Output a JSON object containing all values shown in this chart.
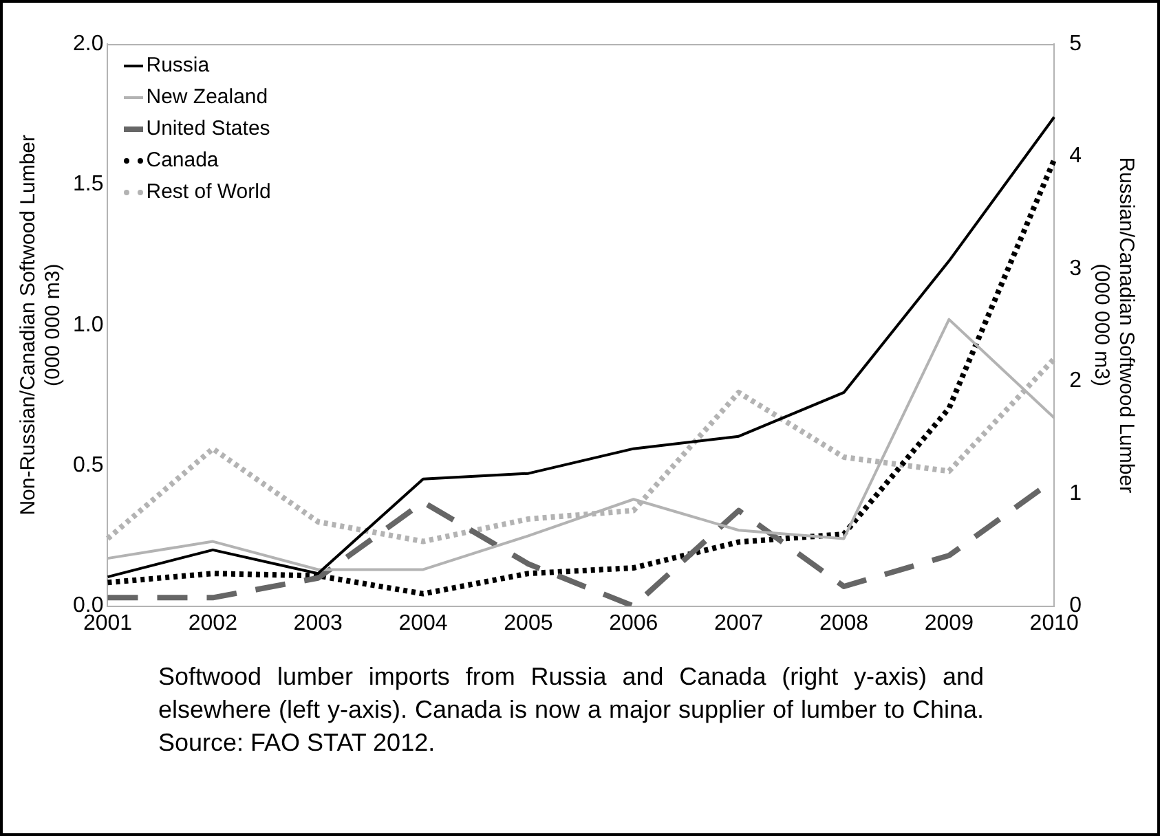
{
  "chart_data": {
    "type": "line",
    "categories": [
      "2001",
      "2002",
      "2003",
      "2004",
      "2005",
      "2006",
      "2007",
      "2008",
      "2009",
      "2010"
    ],
    "ylabel": "Non-Russian/Canadian Softwood Lumber\n(000 000 m3)",
    "y2label": "Russian/Canadian Softwood Lumber\n(000 000 m3)",
    "ylim": [
      0,
      2
    ],
    "yticks": [
      {
        "value": 0,
        "label": "0.0"
      },
      {
        "value": 0.5,
        "label": "0.5"
      },
      {
        "value": 1,
        "label": "1.0"
      },
      {
        "value": 1.5,
        "label": "1.5"
      },
      {
        "value": 2,
        "label": "2.0"
      }
    ],
    "y2lim": [
      0,
      5
    ],
    "y2ticks": [
      0,
      1,
      2,
      3,
      4,
      5
    ],
    "series": [
      {
        "name": "Russia",
        "color": "#000000",
        "axis": "y2",
        "line_style": "solid",
        "values": [
          0.26,
          0.5,
          0.29,
          1.13,
          1.18,
          1.4,
          1.51,
          1.9,
          3.07,
          4.35
        ]
      },
      {
        "name": "New Zealand",
        "color": "#b3b3b3",
        "line_style": "solid",
        "values": [
          0.17,
          0.23,
          0.13,
          0.13,
          0.25,
          0.38,
          0.27,
          0.24,
          1.02,
          0.67
        ]
      },
      {
        "name": "United States",
        "color": "#666666",
        "line_style": "dashed",
        "values": [
          0.03,
          0.03,
          0.1,
          0.37,
          0.15,
          0.0,
          0.34,
          0.07,
          0.18,
          0.45
        ]
      },
      {
        "name": "Canada",
        "color": "#000000",
        "axis": "y2",
        "line_style": "dotted",
        "values": [
          0.21,
          0.29,
          0.27,
          0.11,
          0.29,
          0.34,
          0.57,
          0.64,
          1.76,
          3.97
        ]
      },
      {
        "name": "Rest of World",
        "color": "#b3b3b3",
        "line_style": "dotted",
        "values": [
          0.24,
          0.56,
          0.3,
          0.23,
          0.31,
          0.34,
          0.76,
          0.53,
          0.48,
          0.88
        ]
      }
    ],
    "legend": "top left",
    "grid": false,
    "annotations": [
      "Softwood lumber imports from Russia and Canada (right y-axis) and elsewhere (left y-axis). Canada is now a major supplier of lumber to China. Source: FAO STAT 2012."
    ]
  }
}
